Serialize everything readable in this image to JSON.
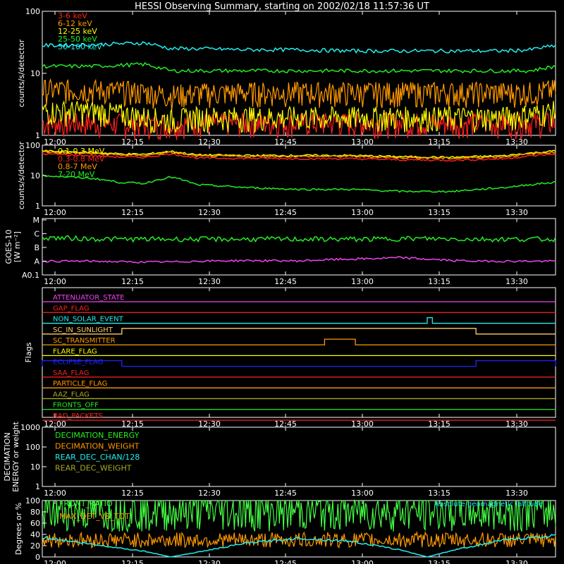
{
  "title": "HESSI Observing Summary, starting on 2002/02/18 11:57:36 UT",
  "colors": {
    "background": "#000000",
    "axis": "#ffffff",
    "red": "#ff2020",
    "orange": "#ff9900",
    "yellow": "#ffff00",
    "green": "#22ee22",
    "cyan": "#22eeee",
    "magenta": "#ee44ee",
    "blue": "#2222ff",
    "olive": "#aaaa22",
    "brightgreen": "#44ff44"
  },
  "chart_data": [
    {
      "type": "line",
      "panel": "hxr",
      "ylabel": "counts/s/detector",
      "yscale": "log",
      "ylim": [
        1,
        100
      ],
      "ytick_labels": [
        "1",
        "10",
        "100"
      ],
      "xtick_labels": [
        "12:00",
        "12:15",
        "12:30",
        "12:45",
        "13:00",
        "13:15",
        "13:30"
      ],
      "legend": [
        "3-6 keV",
        "6-12 keV",
        "12-25 keV",
        "25-50 keV",
        "50-100 keV"
      ],
      "x_minutes_from_start": [
        0,
        10,
        20,
        25,
        30,
        40,
        50,
        60,
        70,
        80,
        90,
        95,
        100
      ],
      "series": [
        {
          "name": "3-6 keV",
          "color": "red",
          "style": "noise",
          "values": [
            1.6,
            1.6,
            1.5,
            1.5,
            1.6,
            1.6,
            1.6,
            1.6,
            1.6,
            1.6,
            1.6,
            1.6,
            1.6
          ]
        },
        {
          "name": "6-12 keV",
          "color": "orange",
          "style": "noise",
          "values": [
            5.5,
            5.5,
            5.0,
            4.5,
            4.8,
            5.0,
            5.0,
            5.0,
            5.0,
            5.0,
            5.0,
            5.0,
            5.5
          ]
        },
        {
          "name": "12-25 keV",
          "color": "yellow",
          "style": "noise",
          "values": [
            2.5,
            2.5,
            2.0,
            1.8,
            2.0,
            2.0,
            2.0,
            2.0,
            2.0,
            2.0,
            2.0,
            2.2,
            2.5
          ]
        },
        {
          "name": "25-50 keV",
          "color": "green",
          "style": "line",
          "values": [
            13,
            13,
            14,
            11,
            11,
            11,
            11,
            11,
            11,
            11,
            11,
            11,
            13
          ]
        },
        {
          "name": "50-100 keV",
          "color": "cyan",
          "style": "line",
          "values": [
            28,
            29,
            31,
            25,
            25,
            24,
            24,
            23,
            23,
            23,
            23,
            24,
            28
          ]
        }
      ]
    },
    {
      "type": "line",
      "panel": "gamma",
      "ylabel": "counts/s/detector",
      "yscale": "log",
      "ylim": [
        1,
        100
      ],
      "ytick_labels": [
        "1",
        "10",
        "100"
      ],
      "xtick_labels": [
        "12:00",
        "12:15",
        "12:30",
        "12:45",
        "13:00",
        "13:15",
        "13:30"
      ],
      "legend": [
        "0.1-0.3 MeV",
        "0.3-0.8 MeV",
        "0.8-7 MeV",
        "7-20 MeV"
      ],
      "x_minutes_from_start": [
        0,
        10,
        15,
        20,
        25,
        30,
        40,
        50,
        60,
        70,
        80,
        90,
        100
      ],
      "series": [
        {
          "name": "0.1-0.3 MeV",
          "color": "yellow",
          "style": "line",
          "values": [
            65,
            58,
            52,
            50,
            63,
            48,
            46,
            46,
            46,
            42,
            40,
            45,
            65
          ]
        },
        {
          "name": "0.3-0.8 MeV",
          "color": "red",
          "style": "line",
          "values": [
            52,
            45,
            41,
            40,
            52,
            38,
            37,
            36,
            36,
            33,
            32,
            36,
            52
          ]
        },
        {
          "name": "0.8-7 MeV",
          "color": "orange",
          "style": "line",
          "values": [
            60,
            53,
            48,
            46,
            58,
            44,
            43,
            43,
            43,
            39,
            37,
            42,
            60
          ]
        },
        {
          "name": "7-20 MeV",
          "color": "green",
          "style": "line",
          "values": [
            10,
            8,
            6,
            5.5,
            9,
            5,
            4,
            3.5,
            3.5,
            3,
            3,
            4,
            6
          ]
        }
      ]
    },
    {
      "type": "line",
      "panel": "goes",
      "ylabel": "GOES-10",
      "ylabel2": "[W m⁻²]",
      "yscale": "class",
      "ytick_labels": [
        "A0.1",
        "A",
        "B",
        "C",
        "M"
      ],
      "xtick_labels": [
        "12:00",
        "12:15",
        "12:30",
        "12:45",
        "13:00",
        "13:15",
        "13:30"
      ],
      "x_minutes_from_start": [
        0,
        10,
        18,
        25,
        30,
        40,
        50,
        55,
        65,
        70,
        75,
        80,
        85,
        90,
        100
      ],
      "series": [
        {
          "name": "GOES high",
          "color": "green",
          "style": "line",
          "values": [
            2.72,
            2.62,
            2.6,
            2.6,
            2.6,
            2.6,
            2.6,
            2.6,
            2.6,
            2.65,
            2.64,
            2.62,
            2.6,
            2.6,
            2.6
          ]
        },
        {
          "name": "GOES low",
          "color": "magenta",
          "style": "line",
          "values": [
            1.0,
            1.0,
            0.94,
            0.95,
            1.0,
            1.05,
            1.02,
            1.1,
            1.2,
            1.25,
            1.15,
            1.05,
            1.0,
            1.0,
            1.0
          ]
        }
      ]
    },
    {
      "type": "flags",
      "panel": "flags",
      "ylabel": "Flags",
      "xtick_labels": [
        "12:00",
        "12:15",
        "12:30",
        "12:45",
        "13:00",
        "13:15",
        "13:30"
      ],
      "flags": [
        {
          "name": "ATTENUATOR_STATE",
          "color": "magenta",
          "on": []
        },
        {
          "name": "GAP_FLAG",
          "color": "red",
          "on": []
        },
        {
          "name": "NON_SOLAR_EVENT",
          "color": "cyan",
          "on": [
            [
              75,
              76
            ]
          ]
        },
        {
          "name": "SC_IN_SUNLIGHT",
          "color": "orange_light",
          "on": [
            [
              15.5,
              84.5
            ]
          ]
        },
        {
          "name": "SC_TRANSMITTER",
          "color": "orange",
          "on": [
            [
              55,
              61
            ]
          ]
        },
        {
          "name": "FLARE_FLAG",
          "color": "yellow",
          "on": []
        },
        {
          "name": "ECLIPSE_FLAG",
          "color": "blue",
          "on": [
            [
              0,
              15.5
            ],
            [
              84.5,
              100
            ]
          ]
        },
        {
          "name": "SAA_FLAG",
          "color": "red",
          "on": []
        },
        {
          "name": "PARTICLE_FLAG",
          "color": "orange",
          "on": []
        },
        {
          "name": "AAZ_FLAG",
          "color": "olive",
          "on": []
        },
        {
          "name": "FRONTS_OFF",
          "color": "green",
          "on": []
        },
        {
          "name": "BAD_PACKETS",
          "color": "red",
          "on": []
        }
      ]
    },
    {
      "type": "line",
      "panel": "decimation",
      "ylabel": "DECIMATION",
      "ylabel2": "ENERGY or weight",
      "yscale": "log",
      "ylim": [
        1,
        1000
      ],
      "ytick_labels": [
        "1",
        "10",
        "100",
        "1000"
      ],
      "xtick_labels": [
        "12:00",
        "12:15",
        "12:30",
        "12:45",
        "13:00",
        "13:15",
        "13:30"
      ],
      "legend": [
        "DECIMATION_ENERGY",
        "DECIMATION_WEIGHT",
        "REAR_DEC_CHAN/128",
        "REAR_DEC_WEIGHT"
      ],
      "series": []
    },
    {
      "type": "line",
      "panel": "ratio",
      "ylabel": "Degrees or %",
      "ylim": [
        0,
        100
      ],
      "ytick_labels": [
        "0",
        "20",
        "40",
        "60",
        "80",
        "100"
      ],
      "xtick_labels": [
        "12:00",
        "12:15",
        "12:30",
        "12:45",
        "13:00",
        "13:15",
        "13:30"
      ],
      "legend": [
        "FRONT_RATIO",
        "MAX_DET_VS_TOT"
      ],
      "annotation": "Absolute geomagnetic latitude",
      "x_minutes_from_start": [
        0,
        10,
        20,
        25,
        30,
        40,
        50,
        60,
        70,
        75,
        80,
        90,
        100
      ],
      "series": [
        {
          "name": "FRONT_RATIO",
          "color": "brightgreen",
          "style": "noise",
          "values": [
            82,
            82,
            82,
            82,
            82,
            82,
            82,
            82,
            82,
            82,
            82,
            82,
            82
          ]
        },
        {
          "name": "MAX_DET_VS_TOT",
          "color": "orange",
          "style": "noise",
          "values": [
            30,
            30,
            30,
            30,
            30,
            30,
            30,
            30,
            30,
            30,
            30,
            30,
            30
          ]
        },
        {
          "name": "Absolute geomagnetic latitude",
          "color": "cyan",
          "style": "line",
          "values": [
            35,
            22,
            10,
            0,
            8,
            25,
            33,
            28,
            12,
            0,
            12,
            30,
            38
          ]
        }
      ]
    }
  ]
}
